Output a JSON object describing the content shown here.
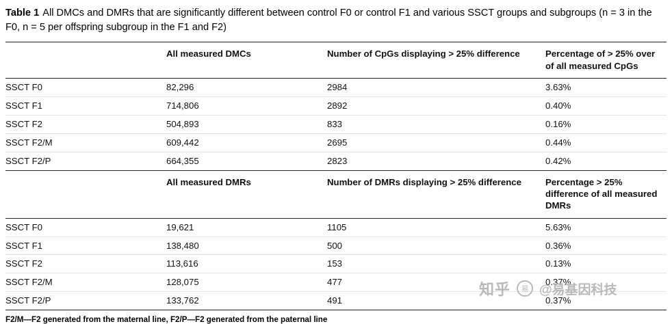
{
  "caption": {
    "label": "Table 1",
    "text": "All DMCs and DMRs that are significantly different between control F0 or control F1 and various SSCT groups and subgroups (n = 3 in the F0, n = 5 per offspring subgroup in the F1 and F2)"
  },
  "dmc": {
    "col_all": "All measured DMCs",
    "col_count": "Number of CpGs displaying > 25% difference",
    "col_pct": "Percentage of > 25% over of all measured CpGs",
    "rows": [
      {
        "label": "SSCT F0",
        "all": "82,296",
        "count": "2984",
        "pct": "3.63%"
      },
      {
        "label": "SSCT F1",
        "all": "714,806",
        "count": "2892",
        "pct": "0.40%"
      },
      {
        "label": "SSCT F2",
        "all": "504,893",
        "count": "833",
        "pct": "0.16%"
      },
      {
        "label": "SSCT F2/M",
        "all": "609,442",
        "count": "2695",
        "pct": "0.44%"
      },
      {
        "label": "SSCT F2/P",
        "all": "664,355",
        "count": "2823",
        "pct": "0.42%"
      }
    ]
  },
  "dmr": {
    "col_all": "All measured DMRs",
    "col_count": "Number of DMRs displaying > 25% difference",
    "col_pct": "Percentage > 25% difference of all measured DMRs",
    "rows": [
      {
        "label": "SSCT F0",
        "all": "19,621",
        "count": "1105",
        "pct": "5.63%"
      },
      {
        "label": "SSCT F1",
        "all": "138,480",
        "count": "500",
        "pct": "0.36%"
      },
      {
        "label": "SSCT F2",
        "all": "113,616",
        "count": "153",
        "pct": "0.13%"
      },
      {
        "label": "SSCT F2/M",
        "all": "128,075",
        "count": "477",
        "pct": "0.37%"
      },
      {
        "label": "SSCT F2/P",
        "all": "133,762",
        "count": "491",
        "pct": "0.37%"
      }
    ]
  },
  "footnote": "F2/M—F2 generated from the maternal line, F2/P—F2 generated from the paternal line",
  "watermark": {
    "brand": "知乎",
    "logo_glyph": "易",
    "handle": "@易基因科技"
  },
  "colors": {
    "rule_dark": "#262626",
    "rule_light": "#e4e4e4",
    "watermark_gray": "#b9b9b9"
  }
}
